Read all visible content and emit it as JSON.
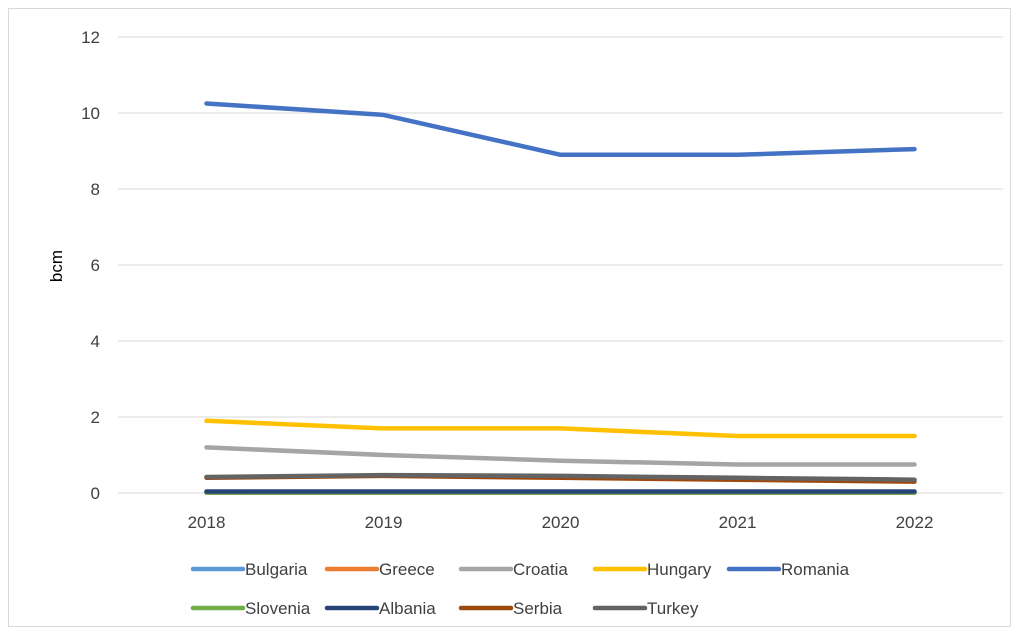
{
  "chart_data": {
    "type": "line",
    "title": "",
    "xlabel": "",
    "ylabel": "bcm",
    "x": [
      "2018",
      "2019",
      "2020",
      "2021",
      "2022"
    ],
    "ylim": [
      0,
      12
    ],
    "yticks": [
      0,
      2,
      4,
      6,
      8,
      10,
      12
    ],
    "grid": "horizontal",
    "legend": "bottom",
    "series": [
      {
        "name": "Bulgaria",
        "color": "#5b9bd5",
        "values": [
          0.03,
          0.03,
          0.03,
          0.03,
          0.03
        ]
      },
      {
        "name": "Greece",
        "color": "#ed7d31",
        "values": [
          0.01,
          0.01,
          0.01,
          0.01,
          0.01
        ]
      },
      {
        "name": "Croatia",
        "color": "#a5a5a5",
        "values": [
          1.2,
          1.0,
          0.85,
          0.75,
          0.75
        ]
      },
      {
        "name": "Hungary",
        "color": "#ffc000",
        "values": [
          1.9,
          1.7,
          1.7,
          1.5,
          1.5
        ]
      },
      {
        "name": "Romania",
        "color": "#4472c4",
        "values": [
          10.25,
          9.95,
          8.9,
          8.9,
          9.05
        ]
      },
      {
        "name": "Slovenia",
        "color": "#70ad47",
        "values": [
          0.01,
          0.01,
          0.01,
          0.01,
          0.01
        ]
      },
      {
        "name": "Albania",
        "color": "#264478",
        "values": [
          0.04,
          0.04,
          0.04,
          0.04,
          0.04
        ]
      },
      {
        "name": "Serbia",
        "color": "#9e480e",
        "values": [
          0.4,
          0.45,
          0.4,
          0.35,
          0.3
        ]
      },
      {
        "name": "Turkey",
        "color": "#636363",
        "values": [
          0.42,
          0.47,
          0.45,
          0.4,
          0.35
        ]
      }
    ]
  }
}
